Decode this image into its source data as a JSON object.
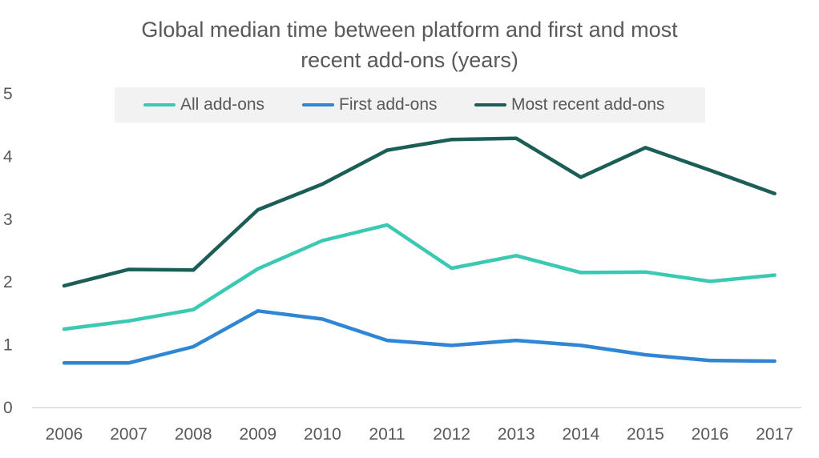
{
  "chart_data": {
    "type": "line",
    "title": "Global median time between platform and first and most recent add-ons (years)",
    "title_lines": [
      "Global median time between platform and first and most",
      "recent add-ons (years)"
    ],
    "xlabel": "",
    "ylabel": "",
    "categories": [
      "2006",
      "2007",
      "2008",
      "2009",
      "2010",
      "2011",
      "2012",
      "2013",
      "2014",
      "2015",
      "2016",
      "2017"
    ],
    "ylim": [
      0,
      5
    ],
    "yticks": [
      "0",
      "1",
      "2",
      "3",
      "4",
      "5"
    ],
    "grid": false,
    "legend_position": "top",
    "series": [
      {
        "name": "All add-ons",
        "color": "#3cc9b3",
        "values": [
          1.25,
          1.38,
          1.56,
          2.21,
          2.66,
          2.91,
          2.22,
          2.42,
          2.15,
          2.16,
          2.01,
          2.11
        ]
      },
      {
        "name": "First add-ons",
        "color": "#2e86d4",
        "values": [
          0.71,
          0.71,
          0.97,
          1.54,
          1.41,
          1.07,
          0.99,
          1.07,
          0.99,
          0.84,
          0.75,
          0.74
        ]
      },
      {
        "name": "Most recent add-ons",
        "color": "#1a5e56",
        "values": [
          1.94,
          2.2,
          2.19,
          3.15,
          3.56,
          4.1,
          4.27,
          4.29,
          3.67,
          4.14,
          3.78,
          3.41
        ]
      }
    ]
  }
}
